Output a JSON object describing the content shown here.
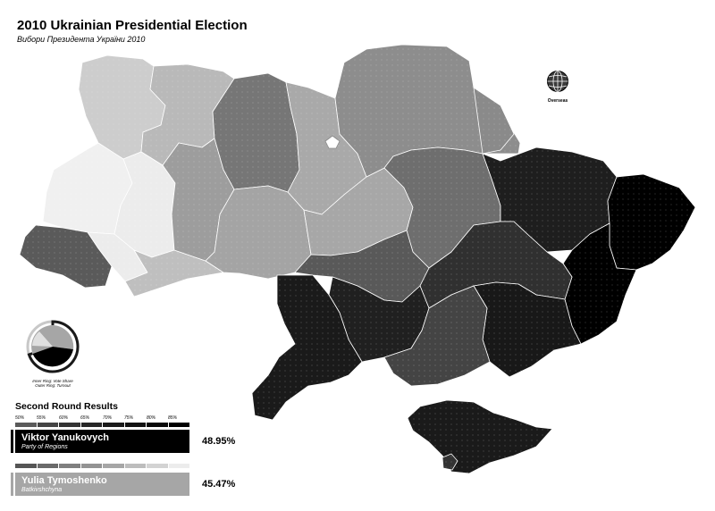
{
  "title": "2010 Ukrainian Presidential Election",
  "subtitle": "Вибори Президента України 2010",
  "overseas_label": "Overseas",
  "ring_legend": {
    "inner": "Inner Ring: Vote Share",
    "outer": "Outer Ring: Turnout"
  },
  "results": {
    "heading": "Second Round Results",
    "scale_ticks": [
      "50%",
      "55%",
      "60%",
      "65%",
      "70%",
      "75%",
      "80%",
      "85%"
    ],
    "candidates": [
      {
        "name": "Viktor Yanukovych",
        "party": "Party of Regions",
        "percent": "48.95%",
        "color": "#000000"
      },
      {
        "name": "Yulia Tymoshenko",
        "party": "Batkivshchyna",
        "percent": "45.47%",
        "color": "#a6a6a6"
      }
    ]
  },
  "colors": {
    "yanukovych_scale": [
      "#5a5a5a",
      "#444444",
      "#333333",
      "#262626",
      "#1a1a1a",
      "#111111",
      "#080808",
      "#000000"
    ],
    "tymoshenko_scale": [
      "#555555",
      "#6a6a6a",
      "#7f7f7f",
      "#939393",
      "#a6a6a6",
      "#bdbdbd",
      "#d3d3d3",
      "#ececec"
    ]
  }
}
